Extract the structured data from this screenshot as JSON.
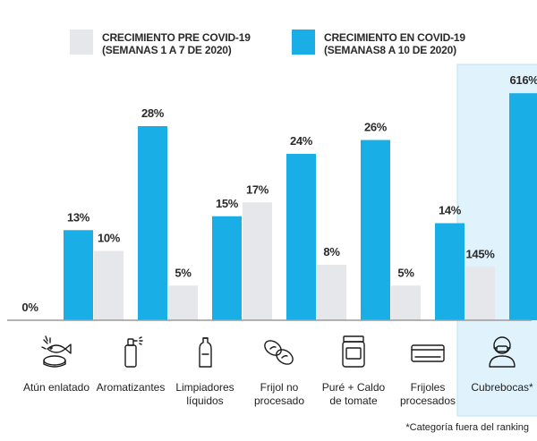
{
  "chart_data": {
    "type": "bar",
    "legend": {
      "placement": "top"
    },
    "series": [
      {
        "name": "CRECIMIENTO PRE COVID-19\n(SEMANAS 1 A 7 DE 2020)",
        "color": "#e6e7ea",
        "values": [
          0,
          10,
          5,
          17,
          8,
          5,
          145
        ]
      },
      {
        "name": "CRECIMIENTO EN COVID-19\n(SEMANAS8 A 10 DE 2020)",
        "color": "#1aaee6",
        "values": [
          13,
          28,
          15,
          24,
          26,
          14,
          616
        ]
      }
    ],
    "value_labels": [
      [
        "0%",
        "10%",
        "5%",
        "17%",
        "8%",
        "5%",
        "145%"
      ],
      [
        "13%",
        "28%",
        "15%",
        "24%",
        "26%",
        "14%",
        "616%"
      ]
    ],
    "categories": [
      {
        "label": "Atún enlatado",
        "icon": "fish-can-icon"
      },
      {
        "label": "Aromatizantes",
        "icon": "spray-bottle-icon"
      },
      {
        "label": "Limpiadores\nlíquidos",
        "icon": "cleaner-bottle-icon"
      },
      {
        "label": "Frijol no\nprocesado",
        "icon": "beans-icon"
      },
      {
        "label": "Puré + Caldo\nde tomate",
        "icon": "jar-icon"
      },
      {
        "label": "Frijoles\nprocesados",
        "icon": "can-icon"
      },
      {
        "label": "Cubrebocas*",
        "icon": "face-mask-icon"
      }
    ],
    "highlight_category": "Cubrebocas*",
    "highlight_color": "#e0f2fb",
    "note": "*Categoría fuera del ranking",
    "grid": false,
    "axis_baseline_color": "#9a9a9a"
  }
}
